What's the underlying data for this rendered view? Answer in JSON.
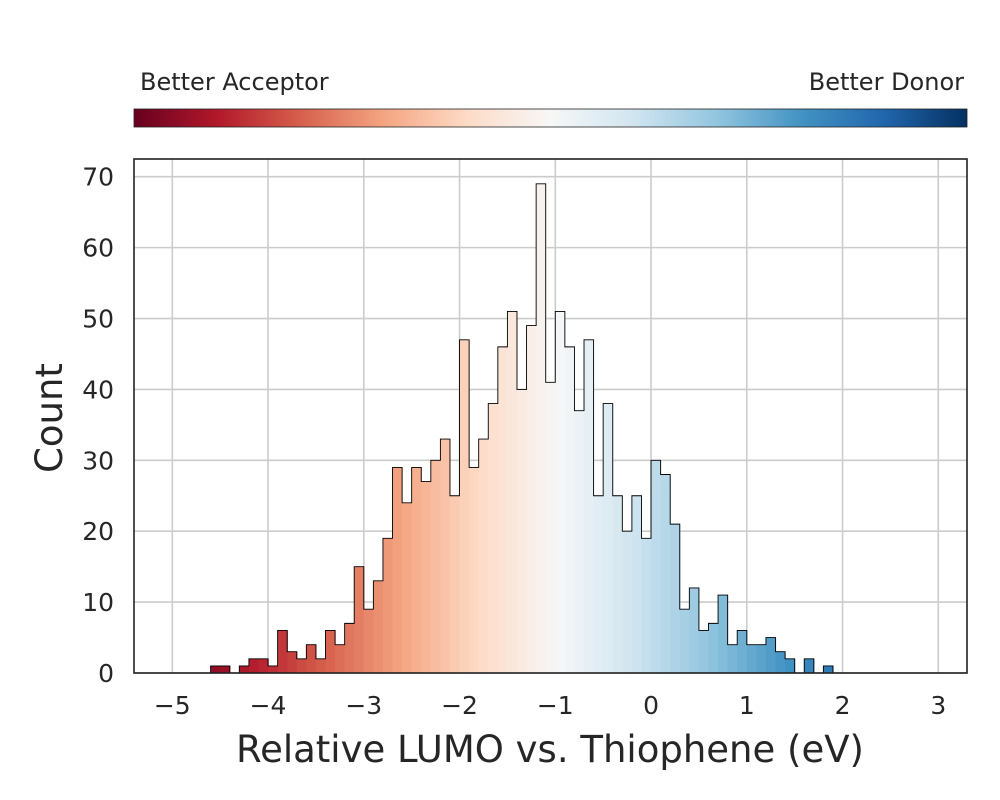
{
  "colorbar": {
    "left_label": "Better Acceptor",
    "right_label": "Better Donor",
    "colormap": [
      "#67001f",
      "#b2182b",
      "#d6604d",
      "#f4a582",
      "#fddbc7",
      "#f7f7f7",
      "#d1e5f0",
      "#92c5de",
      "#4393c3",
      "#2166ac",
      "#053061"
    ]
  },
  "chart_data": {
    "type": "histogram",
    "xlabel": "Relative LUMO vs. Thiophene (eV)",
    "ylabel": "Count",
    "xlim": [
      -5.4,
      3.3
    ],
    "ylim": [
      0,
      72.5
    ],
    "xticks": [
      -5,
      -4,
      -3,
      -2,
      -1,
      0,
      1,
      2,
      3
    ],
    "xtick_labels": [
      "−5",
      "−4",
      "−3",
      "−2",
      "−1",
      "0",
      "1",
      "2",
      "3"
    ],
    "yticks": [
      0,
      10,
      20,
      30,
      40,
      50,
      60,
      70
    ],
    "grid": true,
    "bin_start": -4.6,
    "bin_width": 0.1,
    "counts": [
      1,
      1,
      0,
      1,
      2,
      2,
      1,
      6,
      3,
      2,
      4,
      2,
      6,
      4,
      7,
      15,
      9,
      13,
      19,
      29,
      24,
      29,
      27,
      30,
      33,
      25,
      47,
      29,
      33,
      38,
      46,
      51,
      40,
      49,
      69,
      41,
      51,
      46,
      37,
      47,
      25,
      38,
      25,
      20,
      25,
      19,
      30,
      28,
      21,
      9,
      12,
      6,
      7,
      11,
      4,
      6,
      4,
      4,
      5,
      3,
      2,
      0,
      2,
      0,
      1
    ],
    "color_range": [
      -5,
      3
    ]
  }
}
